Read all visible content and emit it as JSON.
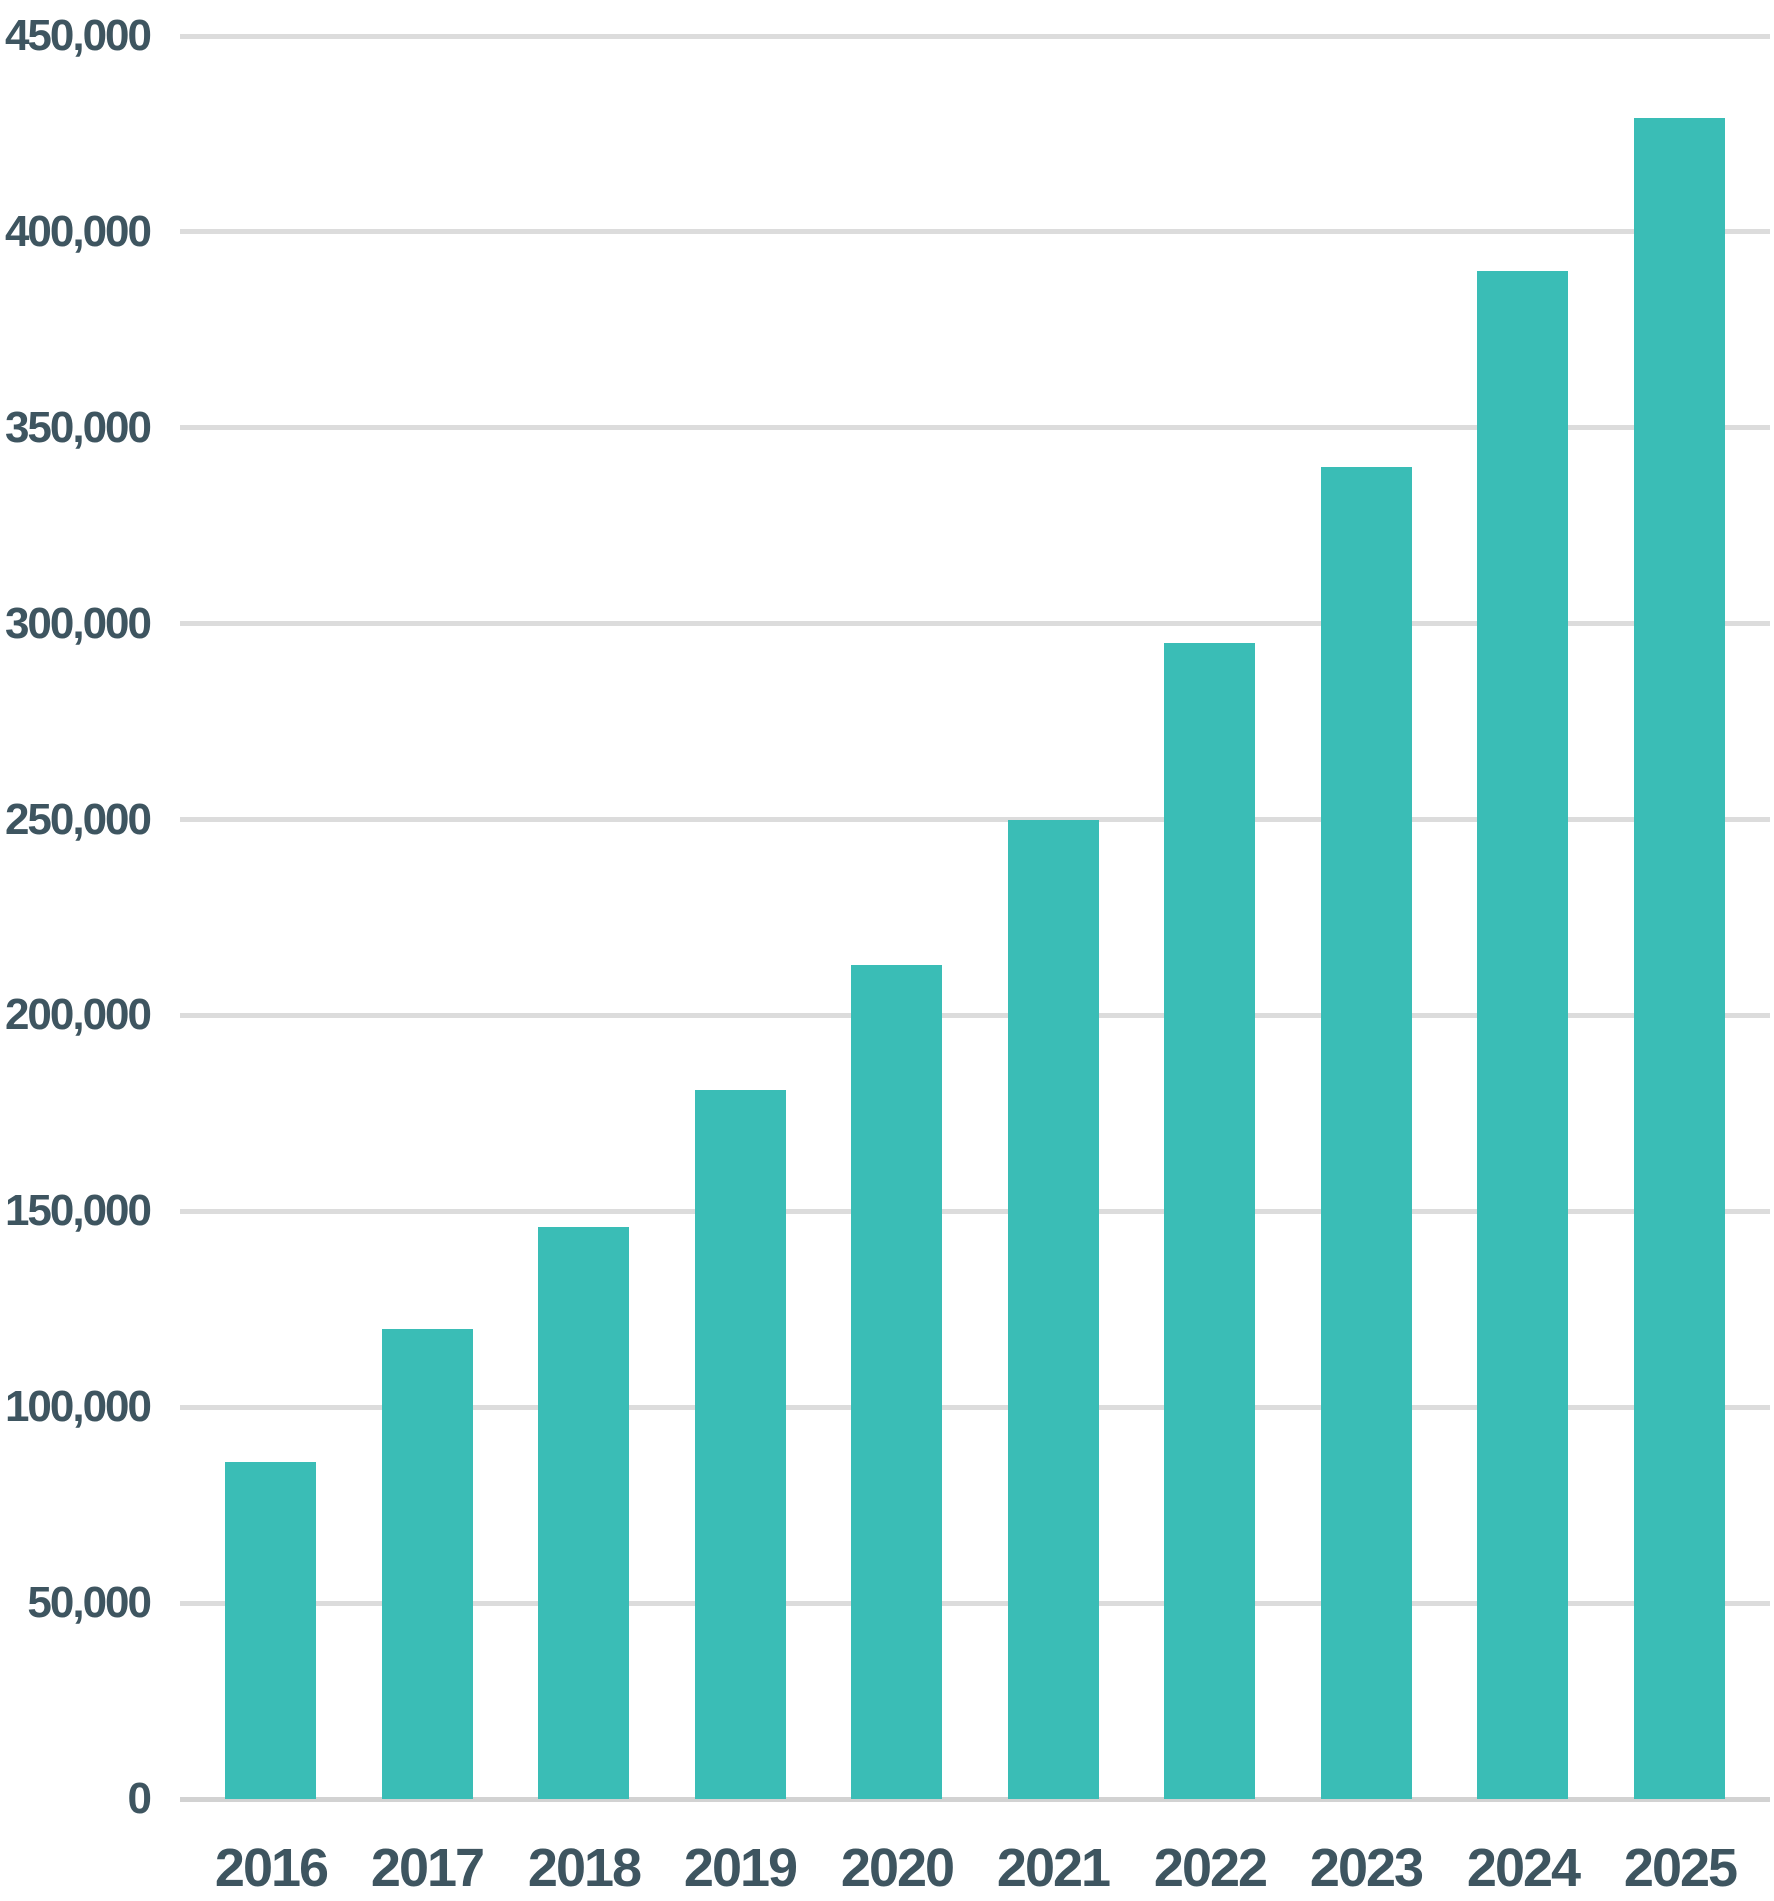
{
  "chart_data": {
    "type": "bar",
    "title": "",
    "xlabel": "",
    "ylabel": "",
    "categories": [
      "2016",
      "2017",
      "2018",
      "2019",
      "2020",
      "2021",
      "2022",
      "2023",
      "2024",
      "2025"
    ],
    "values": [
      86000,
      120000,
      146000,
      181000,
      213000,
      250000,
      295000,
      340000,
      390000,
      429000
    ],
    "ylim": [
      0,
      450000
    ],
    "y_ticks": [
      {
        "value": 0,
        "label": "0"
      },
      {
        "value": 50000,
        "label": "50,000"
      },
      {
        "value": 100000,
        "label": "100,000"
      },
      {
        "value": 150000,
        "label": "150,000"
      },
      {
        "value": 200000,
        "label": "200,000"
      },
      {
        "value": 250000,
        "label": "250,000"
      },
      {
        "value": 300000,
        "label": "300,000"
      },
      {
        "value": 350000,
        "label": "350,000"
      },
      {
        "value": 400000,
        "label": "400,000"
      },
      {
        "value": 450000,
        "label": "450,000"
      }
    ],
    "grid": true,
    "legend": false,
    "colors": {
      "bar": "#3abdb6",
      "gridline": "#dcdcdc",
      "axis_line": "#d2d2d2",
      "label_text": "#3e5560",
      "background": "#ffffff"
    }
  }
}
